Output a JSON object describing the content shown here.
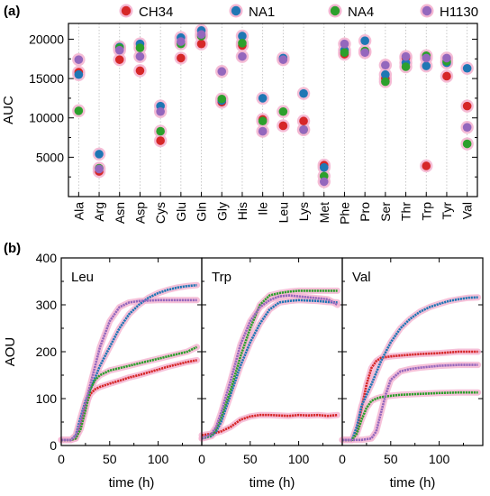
{
  "figure": {
    "panel_a_label": "(a)",
    "panel_b_label": "(b)"
  },
  "colors": {
    "CH34": "#d62728",
    "NA1": "#1f77b4",
    "NA4": "#2ca02c",
    "H1130": "#9467bd",
    "halo": "#f4b6d2"
  },
  "chart_data": [
    {
      "type": "scatter",
      "panel": "a",
      "ylabel": "AUC",
      "xlabel": "",
      "ylim": [
        0,
        22000
      ],
      "yticks": [
        5000,
        10000,
        15000,
        20000
      ],
      "grid": "vertical dotted lines at each amino acid",
      "legend": "top, horizontal",
      "categories": [
        "Ala",
        "Arg",
        "Asn",
        "Asp",
        "Cys",
        "Glu",
        "Gln",
        "Gly",
        "His",
        "Ile",
        "Leu",
        "Lys",
        "Met",
        "Phe",
        "Pro",
        "Ser",
        "Thr",
        "Trp",
        "Tyr",
        "Val"
      ],
      "series": [
        {
          "name": "CH34",
          "values": [
            15800,
            3200,
            17400,
            16000,
            7100,
            17600,
            19400,
            12000,
            19200,
            9800,
            9000,
            9600,
            4000,
            18100,
            18400,
            15000,
            17600,
            3900,
            15300,
            11500
          ]
        },
        {
          "name": "NA1",
          "values": [
            15500,
            5400,
            19000,
            19400,
            11500,
            20200,
            21100,
            12200,
            20400,
            12500,
            17600,
            13100,
            3700,
            18600,
            19800,
            15500,
            17000,
            16600,
            17000,
            16300
          ]
        },
        {
          "name": "NA4",
          "values": [
            10900,
            3600,
            18900,
            18900,
            8300,
            19400,
            20400,
            12400,
            19500,
            9600,
            10800,
            8500,
            2600,
            18300,
            18500,
            14600,
            16500,
            17900,
            17200,
            6700
          ]
        },
        {
          "name": "H1130",
          "values": [
            17400,
            3500,
            18600,
            17800,
            10800,
            19700,
            20600,
            15900,
            17800,
            8300,
            17400,
            8500,
            1900,
            19400,
            18300,
            16700,
            17800,
            17600,
            17600,
            8800
          ]
        }
      ]
    },
    {
      "type": "line",
      "panel": "b",
      "ylabel": "AOU",
      "xlabel": "time (h)",
      "xlim": [
        0,
        145
      ],
      "ylim": [
        0,
        400
      ],
      "xticks": [
        0,
        50,
        100
      ],
      "yticks": [
        0,
        100,
        200,
        300,
        400
      ],
      "subpanels": [
        {
          "label": "Leu",
          "series": [
            {
              "name": "CH34",
              "x": [
                0,
                10,
                15,
                20,
                25,
                30,
                35,
                40,
                50,
                60,
                70,
                80,
                90,
                100,
                110,
                120,
                130,
                140
              ],
              "y": [
                12,
                12,
                15,
                40,
                85,
                110,
                120,
                125,
                132,
                138,
                145,
                150,
                156,
                162,
                168,
                173,
                178,
                182
              ]
            },
            {
              "name": "NA1",
              "x": [
                0,
                10,
                15,
                20,
                25,
                30,
                35,
                40,
                50,
                60,
                70,
                80,
                90,
                100,
                110,
                120,
                130,
                140
              ],
              "y": [
                12,
                12,
                22,
                60,
                95,
                120,
                145,
                170,
                210,
                250,
                280,
                300,
                315,
                325,
                332,
                337,
                340,
                342
              ]
            },
            {
              "name": "NA4",
              "x": [
                0,
                10,
                15,
                20,
                25,
                30,
                35,
                40,
                50,
                60,
                70,
                80,
                90,
                100,
                110,
                120,
                130,
                140
              ],
              "y": [
                12,
                12,
                15,
                35,
                75,
                120,
                140,
                150,
                160,
                165,
                170,
                175,
                180,
                185,
                190,
                195,
                200,
                210
              ]
            },
            {
              "name": "H1130",
              "x": [
                0,
                10,
                15,
                20,
                25,
                30,
                35,
                40,
                50,
                60,
                70,
                80,
                90,
                100,
                110,
                120,
                130,
                140
              ],
              "y": [
                12,
                12,
                20,
                50,
                90,
                130,
                170,
                210,
                265,
                295,
                305,
                308,
                309,
                310,
                310,
                310,
                310,
                310
              ]
            }
          ]
        },
        {
          "label": "Trp",
          "series": [
            {
              "name": "CH34",
              "x": [
                0,
                10,
                20,
                30,
                40,
                50,
                60,
                70,
                80,
                90,
                100,
                110,
                120,
                130,
                140
              ],
              "y": [
                22,
                25,
                30,
                40,
                55,
                62,
                65,
                65,
                64,
                63,
                65,
                64,
                65,
                63,
                65
              ]
            },
            {
              "name": "NA1",
              "x": [
                0,
                10,
                15,
                20,
                30,
                40,
                50,
                60,
                70,
                80,
                90,
                100,
                110,
                120,
                130,
                140
              ],
              "y": [
                15,
                20,
                30,
                50,
                110,
                170,
                220,
                260,
                290,
                305,
                308,
                310,
                309,
                308,
                306,
                305
              ]
            },
            {
              "name": "NA4",
              "x": [
                0,
                10,
                15,
                20,
                30,
                40,
                50,
                60,
                70,
                80,
                90,
                100,
                110,
                120,
                130,
                140
              ],
              "y": [
                15,
                22,
                35,
                60,
                120,
                190,
                250,
                300,
                320,
                325,
                328,
                330,
                330,
                330,
                330,
                330
              ]
            },
            {
              "name": "H1130",
              "x": [
                0,
                10,
                15,
                20,
                30,
                40,
                50,
                60,
                70,
                80,
                90,
                100,
                110,
                120,
                130,
                140
              ],
              "y": [
                15,
                25,
                40,
                70,
                140,
                215,
                265,
                295,
                310,
                318,
                320,
                318,
                316,
                314,
                312,
                300
              ]
            }
          ]
        },
        {
          "label": "Val",
          "series": [
            {
              "name": "CH34",
              "x": [
                0,
                10,
                15,
                20,
                25,
                30,
                35,
                40,
                50,
                60,
                80,
                100,
                120,
                140
              ],
              "y": [
                12,
                12,
                30,
                80,
                130,
                165,
                180,
                187,
                190,
                192,
                195,
                197,
                200,
                200
              ]
            },
            {
              "name": "NA1",
              "x": [
                0,
                10,
                15,
                20,
                30,
                40,
                50,
                60,
                70,
                80,
                90,
                100,
                110,
                120,
                130,
                140
              ],
              "y": [
                12,
                12,
                40,
                85,
                130,
                180,
                220,
                250,
                270,
                285,
                295,
                302,
                308,
                312,
                315,
                316
              ]
            },
            {
              "name": "NA4",
              "x": [
                0,
                10,
                15,
                20,
                25,
                30,
                35,
                40,
                50,
                60,
                80,
                100,
                120,
                140
              ],
              "y": [
                12,
                12,
                25,
                55,
                80,
                95,
                100,
                103,
                106,
                108,
                110,
                112,
                113,
                113
              ]
            },
            {
              "name": "H1130",
              "x": [
                0,
                10,
                20,
                30,
                35,
                40,
                45,
                50,
                60,
                70,
                80,
                100,
                120,
                140
              ],
              "y": [
                12,
                12,
                12,
                15,
                30,
                70,
                110,
                140,
                158,
                163,
                166,
                170,
                172,
                172
              ]
            }
          ]
        }
      ]
    }
  ]
}
